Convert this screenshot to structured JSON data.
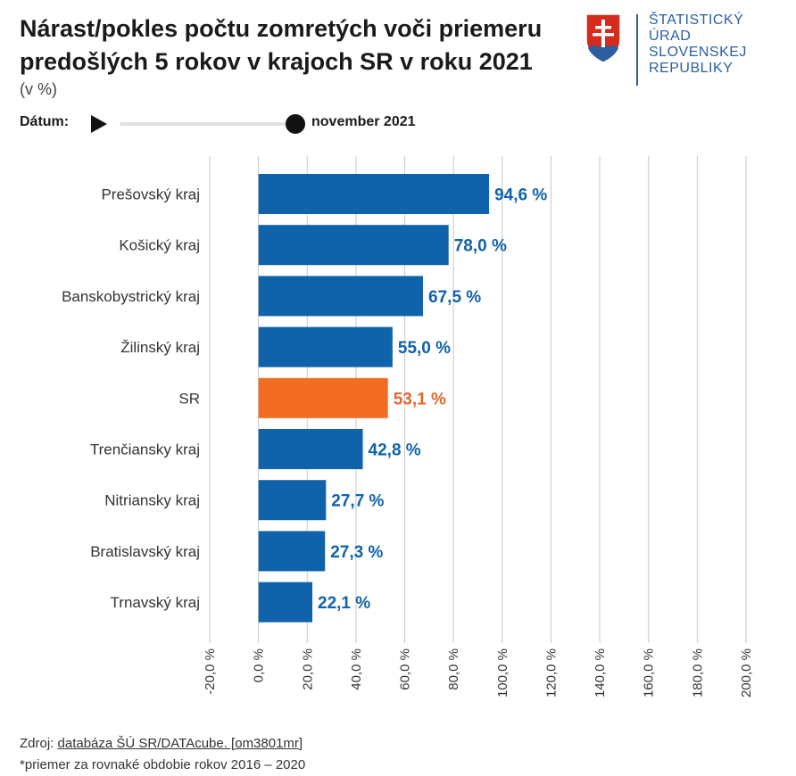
{
  "title": "Nárast/pokles počtu zomretých voči priemeru predošlých 5 rokov v krajoch SR v roku 2021",
  "subtitle": "(v %)",
  "logo": {
    "lines": [
      "ŠTATISTICKÝ",
      "ÚRAD",
      "SLOVENSKEJ",
      "REPUBLIKY"
    ],
    "icon": "slovak-coat-of-arms"
  },
  "controls": {
    "date_label": "Dátum:",
    "date_value": "november 2021",
    "play_icon": "play-icon",
    "progress": 1.0
  },
  "footer": {
    "source_prefix": "Zdroj: ",
    "source_link": "databáza ŠÚ SR/DATAcube. [om3801mr]",
    "note": "*priemer za rovnaké obdobie rokov 2016 – 2020"
  },
  "colors": {
    "bar": "#1062ab",
    "highlight": "#f26d21",
    "grid": "#c9c9c9",
    "label_blue": "#1062ab",
    "label_orange": "#e0692a"
  },
  "chart_data": {
    "type": "bar",
    "orientation": "horizontal",
    "categories": [
      "Prešovský kraj",
      "Košický kraj",
      "Banskobystrický kraj",
      "Žilinský kraj",
      "SR",
      "Trenčiansky kraj",
      "Nitriansky kraj",
      "Bratislavský kraj",
      "Trnavský kraj"
    ],
    "values": [
      94.6,
      78.0,
      67.5,
      55.0,
      53.1,
      42.8,
      27.7,
      27.3,
      22.1
    ],
    "value_labels": [
      "94,6 %",
      "78,0 %",
      "67,5 %",
      "55,0 %",
      "53,1 %",
      "42,8 %",
      "27,7 %",
      "27,3 %",
      "22,1 %"
    ],
    "highlight_category": "SR",
    "xlim": [
      -20,
      200
    ],
    "xticks": [
      -20,
      0,
      20,
      40,
      60,
      80,
      100,
      120,
      140,
      160,
      180,
      200
    ],
    "xtick_labels": [
      "-20,0 %",
      "0,0 %",
      "20,0 %",
      "40,0 %",
      "60,0 %",
      "80,0 %",
      "100,0 %",
      "120,0 %",
      "140,0 %",
      "160,0 %",
      "180,0 %",
      "200,0 %"
    ],
    "grid": true,
    "xlabel": "",
    "ylabel": ""
  }
}
